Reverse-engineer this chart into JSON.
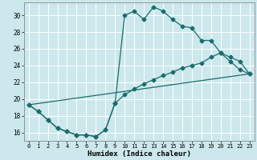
{
  "xlabel": "Humidex (Indice chaleur)",
  "bg_color": "#cce8ec",
  "grid_color": "#b0d8dd",
  "line_color": "#1a6b6b",
  "xlim": [
    -0.5,
    23.5
  ],
  "ylim": [
    15.0,
    31.5
  ],
  "yticks": [
    16,
    18,
    20,
    22,
    24,
    26,
    28,
    30
  ],
  "xticks": [
    0,
    1,
    2,
    3,
    4,
    5,
    6,
    7,
    8,
    9,
    10,
    11,
    12,
    13,
    14,
    15,
    16,
    17,
    18,
    19,
    20,
    21,
    22,
    23
  ],
  "curve1_x": [
    0,
    1,
    2,
    3,
    4,
    5,
    6,
    7,
    8,
    9,
    10,
    11,
    12,
    13,
    14,
    15,
    16,
    17,
    18,
    19,
    20,
    21,
    22,
    23
  ],
  "curve1_y": [
    19.3,
    18.5,
    17.5,
    16.5,
    16.1,
    15.7,
    15.7,
    15.5,
    16.3,
    19.5,
    30.0,
    30.5,
    29.5,
    31.0,
    30.5,
    29.5,
    28.7,
    28.5,
    27.0,
    27.0,
    25.5,
    25.0,
    24.5,
    23.0
  ],
  "curve2_x": [
    0,
    1,
    2,
    3,
    4,
    5,
    6,
    7,
    8,
    9,
    10,
    11,
    12,
    13,
    14,
    15,
    16,
    17,
    18,
    19,
    20,
    21,
    22,
    23
  ],
  "curve2_y": [
    19.3,
    18.5,
    17.5,
    16.5,
    16.1,
    15.7,
    15.7,
    15.5,
    16.3,
    19.5,
    20.5,
    21.2,
    21.8,
    22.3,
    22.8,
    23.2,
    23.7,
    24.0,
    24.3,
    25.0,
    25.5,
    24.5,
    23.5,
    23.0
  ],
  "line3_x": [
    0,
    23
  ],
  "line3_y": [
    19.3,
    23.0
  ]
}
